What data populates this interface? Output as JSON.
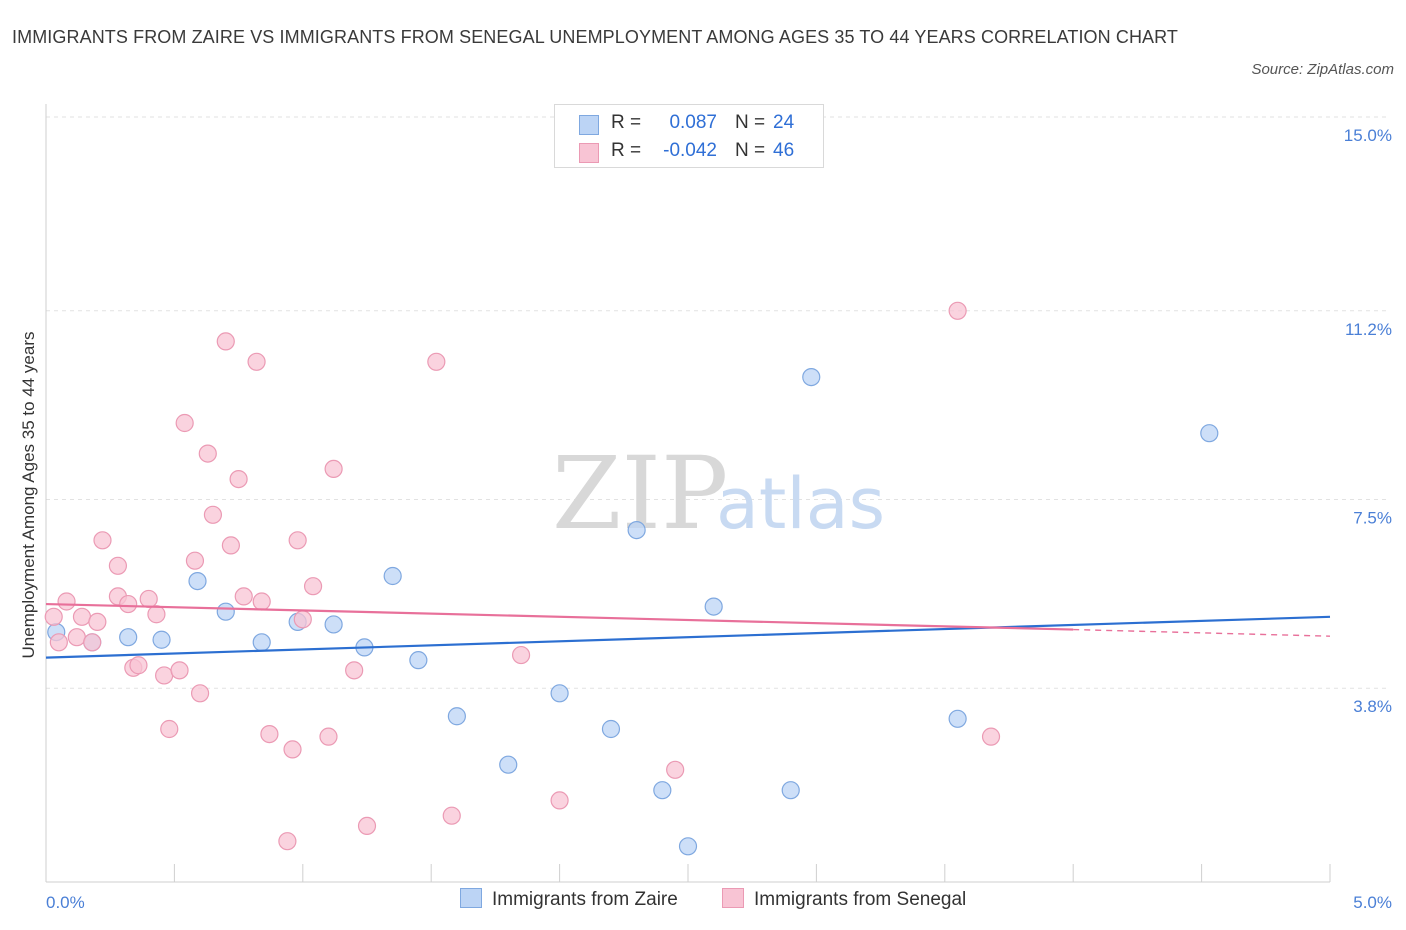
{
  "title": "IMMIGRANTS FROM ZAIRE VS IMMIGRANTS FROM SENEGAL UNEMPLOYMENT AMONG AGES 35 TO 44 YEARS CORRELATION CHART",
  "source": "Source: ZipAtlas.com",
  "watermark": {
    "zip": "ZIP",
    "atlas": "atlas"
  },
  "legend": {
    "zaire": {
      "r_label": "R =",
      "r_value": "0.087",
      "n_label": "N =",
      "n_value": "24"
    },
    "senegal": {
      "r_label": "R =",
      "r_value": "-0.042",
      "n_label": "N =",
      "n_value": "46"
    }
  },
  "colors": {
    "zaire_fill": "#bcd4f5",
    "zaire_stroke": "#7fa8e0",
    "zaire_line": "#2c6fd1",
    "senegal_fill": "#f8c4d4",
    "senegal_stroke": "#eb9ab4",
    "senegal_line": "#e8709a"
  },
  "chart_data": {
    "type": "scatter",
    "title": "IMMIGRANTS FROM ZAIRE VS IMMIGRANTS FROM SENEGAL UNEMPLOYMENT AMONG AGES 35 TO 44 YEARS CORRELATION CHART",
    "xlabel": "",
    "ylabel": "Unemployment Among Ages 35 to 44 years",
    "xlim": [
      0,
      5
    ],
    "ylim": [
      0,
      15
    ],
    "x_tick_labels": [
      "0.0%",
      "5.0%"
    ],
    "y_ticks": [
      3.8,
      7.5,
      11.2,
      15.0
    ],
    "y_tick_labels": [
      "3.8%",
      "7.5%",
      "11.2%",
      "15.0%"
    ],
    "grid": "horizontal dashed",
    "legend_position": "top-center",
    "series": [
      {
        "name": "Immigrants from Zaire",
        "R": 0.087,
        "N": 24,
        "trend": {
          "x": [
            0.0,
            5.0
          ],
          "y": [
            4.4,
            5.2
          ]
        },
        "points": [
          [
            0.04,
            4.9
          ],
          [
            0.18,
            4.7
          ],
          [
            0.32,
            4.8
          ],
          [
            0.45,
            4.75
          ],
          [
            0.59,
            5.9
          ],
          [
            0.7,
            5.3
          ],
          [
            0.84,
            4.7
          ],
          [
            0.98,
            5.1
          ],
          [
            1.12,
            5.05
          ],
          [
            1.24,
            4.6
          ],
          [
            1.35,
            6.0
          ],
          [
            1.45,
            4.35
          ],
          [
            1.6,
            3.25
          ],
          [
            1.8,
            2.3
          ],
          [
            2.0,
            3.7
          ],
          [
            2.2,
            3.0
          ],
          [
            2.3,
            6.9
          ],
          [
            2.4,
            1.8
          ],
          [
            2.5,
            0.7
          ],
          [
            2.6,
            5.4
          ],
          [
            2.9,
            1.8
          ],
          [
            2.98,
            9.9
          ],
          [
            3.55,
            3.2
          ],
          [
            4.53,
            8.8
          ]
        ]
      },
      {
        "name": "Immigrants from Senegal",
        "R": -0.042,
        "N": 46,
        "trend": {
          "x": [
            0.0,
            4.0
          ],
          "y": [
            5.45,
            4.95
          ]
        },
        "trend_dashed": {
          "x": [
            4.0,
            5.0
          ],
          "y": [
            4.95,
            4.82
          ]
        },
        "points": [
          [
            0.03,
            5.2
          ],
          [
            0.05,
            4.7
          ],
          [
            0.08,
            5.5
          ],
          [
            0.12,
            4.8
          ],
          [
            0.14,
            5.2
          ],
          [
            0.18,
            4.7
          ],
          [
            0.2,
            5.1
          ],
          [
            0.22,
            6.7
          ],
          [
            0.28,
            5.6
          ],
          [
            0.28,
            6.2
          ],
          [
            0.32,
            5.45
          ],
          [
            0.34,
            4.2
          ],
          [
            0.36,
            4.25
          ],
          [
            0.4,
            5.55
          ],
          [
            0.43,
            5.25
          ],
          [
            0.46,
            4.05
          ],
          [
            0.48,
            3.0
          ],
          [
            0.52,
            4.15
          ],
          [
            0.54,
            9.0
          ],
          [
            0.58,
            6.3
          ],
          [
            0.6,
            3.7
          ],
          [
            0.63,
            8.4
          ],
          [
            0.65,
            7.2
          ],
          [
            0.7,
            10.6
          ],
          [
            0.72,
            6.6
          ],
          [
            0.75,
            7.9
          ],
          [
            0.77,
            5.6
          ],
          [
            0.82,
            10.2
          ],
          [
            0.84,
            5.5
          ],
          [
            0.87,
            2.9
          ],
          [
            0.94,
            0.8
          ],
          [
            0.96,
            2.6
          ],
          [
            0.98,
            6.7
          ],
          [
            1.0,
            5.15
          ],
          [
            1.04,
            5.8
          ],
          [
            1.1,
            2.85
          ],
          [
            1.12,
            8.1
          ],
          [
            1.2,
            4.15
          ],
          [
            1.25,
            1.1
          ],
          [
            1.52,
            10.2
          ],
          [
            1.58,
            1.3
          ],
          [
            1.85,
            4.45
          ],
          [
            2.0,
            1.6
          ],
          [
            2.45,
            2.2
          ],
          [
            3.55,
            11.2
          ],
          [
            3.68,
            2.85
          ]
        ]
      }
    ]
  },
  "bottom_legend": {
    "zaire_label": "Immigrants from Zaire",
    "senegal_label": "Immigrants from Senegal"
  }
}
